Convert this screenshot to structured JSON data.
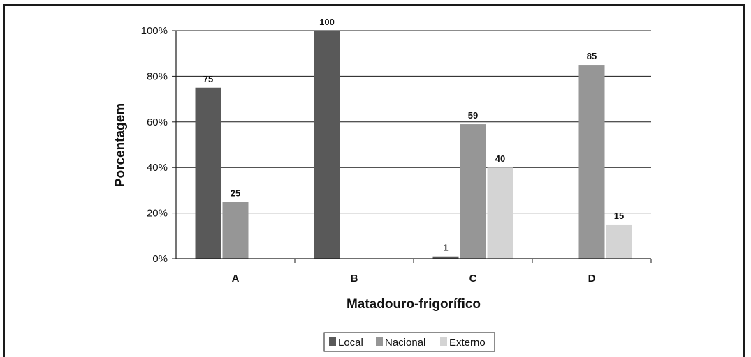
{
  "chart_data": {
    "type": "bar",
    "categories": [
      "A",
      "B",
      "C",
      "D"
    ],
    "series": [
      {
        "name": "Local",
        "values": [
          75,
          100,
          1,
          0
        ],
        "color": "#595959"
      },
      {
        "name": "Nacional",
        "values": [
          25,
          0,
          59,
          85
        ],
        "color": "#969696"
      },
      {
        "name": "Externo",
        "values": [
          0,
          0,
          40,
          15
        ],
        "color": "#d4d4d4"
      }
    ],
    "data_labels": [
      [
        "75",
        "100",
        "1",
        ""
      ],
      [
        "25",
        "",
        "59",
        "85"
      ],
      [
        "",
        "",
        "40",
        "15"
      ]
    ],
    "ylim": [
      0,
      100
    ],
    "yticks": [
      "0%",
      "20%",
      "40%",
      "60%",
      "80%",
      "100%"
    ],
    "xlabel": "Matadouro-frigorífico",
    "ylabel": "Porcentagem",
    "grid": true,
    "legend_position": "bottom-center"
  }
}
